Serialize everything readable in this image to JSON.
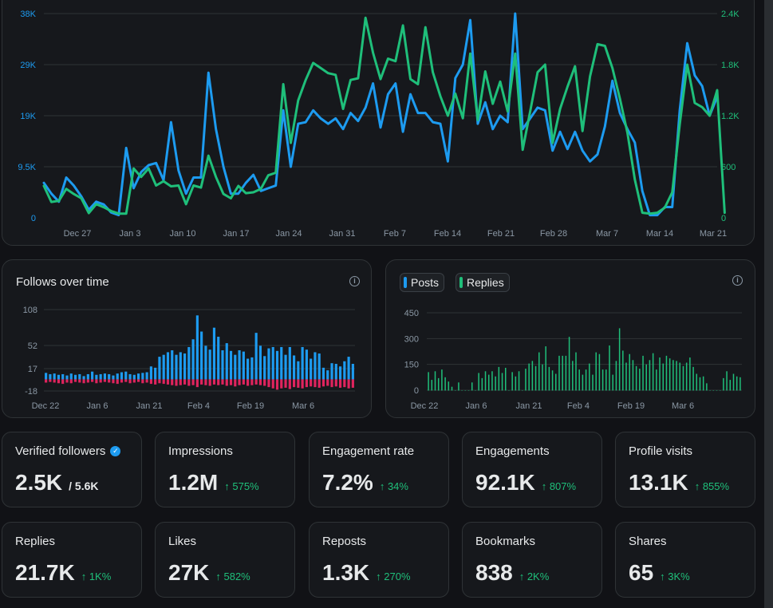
{
  "colors": {
    "blue": "#1d9bf0",
    "green": "#1fbf7a",
    "red": "#e0245e",
    "grid": "#2f3336",
    "muted": "#8b98a5"
  },
  "chart_data": [
    {
      "type": "line",
      "title": "",
      "x_tick_labels": [
        "Dec 27",
        "Jan 3",
        "Jan 10",
        "Jan 17",
        "Jan 24",
        "Jan 31",
        "Feb 7",
        "Feb 14",
        "Feb 21",
        "Feb 28",
        "Mar 7",
        "Mar 14",
        "Mar 21"
      ],
      "left_axis_ticks": [
        "0",
        "9.5K",
        "19K",
        "29K",
        "38K"
      ],
      "right_axis_ticks": [
        "0",
        "600",
        "1.2K",
        "1.8K",
        "2.4K"
      ],
      "ylim_left": [
        0,
        38000
      ],
      "ylim_right": [
        0,
        2400
      ],
      "series": [
        {
          "name": "Impressions",
          "axis": "left",
          "color": "#1d9bf0",
          "values": [
            6500,
            4500,
            3000,
            7500,
            6000,
            4000,
            1500,
            3000,
            2500,
            1000,
            500,
            13000,
            5500,
            8500,
            9800,
            10200,
            7000,
            17800,
            8800,
            4500,
            7500,
            7500,
            27000,
            16500,
            9500,
            4500,
            4500,
            6500,
            8000,
            5000,
            5500,
            6000,
            20000,
            9500,
            17500,
            17800,
            20000,
            18500,
            17500,
            18500,
            16500,
            19500,
            18000,
            20500,
            25000,
            16800,
            23000,
            25000,
            16000,
            23000,
            19500,
            19500,
            17800,
            17500,
            10500,
            26000,
            28500,
            36800,
            17500,
            21500,
            16500,
            19000,
            17800,
            38000,
            16500,
            18500,
            20500,
            20000,
            12500,
            16000,
            12800,
            16000,
            12500,
            10500,
            11800,
            17000,
            25500,
            19500,
            16500,
            14000,
            5000,
            500,
            500,
            2000,
            2000,
            20000,
            32500,
            26500,
            24500,
            19000,
            22500
          ]
        },
        {
          "name": "Engagements",
          "axis": "right",
          "color": "#1fbf7a",
          "values": [
            375,
            187,
            200,
            340,
            280,
            230,
            55,
            160,
            125,
            80,
            50,
            50,
            580,
            480,
            580,
            380,
            430,
            370,
            380,
            160,
            380,
            355,
            730,
            480,
            280,
            230,
            375,
            290,
            300,
            340,
            500,
            530,
            1570,
            880,
            1380,
            1620,
            1820,
            1760,
            1700,
            1680,
            1280,
            1620,
            1640,
            2350,
            1940,
            1630,
            1870,
            1840,
            2260,
            1630,
            1570,
            2240,
            1710,
            1430,
            1200,
            1460,
            1170,
            1930,
            1150,
            1720,
            1340,
            1600,
            1250,
            1930,
            800,
            1250,
            1710,
            1800,
            880,
            1280,
            1540,
            1780,
            1020,
            1660,
            2040,
            2020,
            1760,
            1400,
            1000,
            450,
            60,
            50,
            60,
            120,
            300,
            1100,
            1800,
            1350,
            1300,
            1200,
            1500,
            60
          ]
        }
      ]
    },
    {
      "type": "bar",
      "title": "Follows over time",
      "x_tick_labels": [
        "Dec 22",
        "Jan 6",
        "Jan 21",
        "Feb 4",
        "Feb 19",
        "Mar 6"
      ],
      "y_tick_labels": [
        "108",
        "52",
        "17",
        "-18"
      ],
      "ylim": [
        -18,
        108
      ],
      "series": [
        {
          "name": "Follows",
          "color": "#1d9bf0",
          "values": [
            10,
            8,
            9,
            7,
            8,
            6,
            9,
            7,
            8,
            5,
            8,
            12,
            7,
            8,
            9,
            8,
            6,
            9,
            11,
            12,
            8,
            7,
            9,
            10,
            11,
            20,
            18,
            35,
            38,
            42,
            45,
            38,
            42,
            40,
            50,
            62,
            99,
            74,
            52,
            46,
            80,
            66,
            45,
            56,
            44,
            38,
            45,
            43,
            32,
            34,
            72,
            52,
            36,
            48,
            50,
            44,
            50,
            38,
            50,
            37,
            28,
            50,
            46,
            32,
            42,
            40,
            18,
            14,
            25,
            24,
            20,
            28,
            35,
            24
          ]
        },
        {
          "name": "Unfollows",
          "color": "#e0245e",
          "values": [
            -5,
            -4,
            -5,
            -6,
            -7,
            -5,
            -6,
            -4,
            -5,
            -6,
            -5,
            -4,
            -6,
            -5,
            -4,
            -5,
            -6,
            -7,
            -5,
            -4,
            -6,
            -5,
            -4,
            -6,
            -5,
            -7,
            -8,
            -6,
            -7,
            -8,
            -9,
            -10,
            -9,
            -8,
            -10,
            -9,
            -12,
            -8,
            -9,
            -10,
            -8,
            -9,
            -8,
            -10,
            -9,
            -11,
            -9,
            -8,
            -10,
            -9,
            -8,
            -9,
            -10,
            -12,
            -14,
            -16,
            -14,
            -13,
            -15,
            -12,
            -13,
            -14,
            -12,
            -11,
            -12,
            -13,
            -11,
            -10,
            -12,
            -11,
            -13,
            -12,
            -14,
            -13
          ]
        }
      ]
    },
    {
      "type": "bar",
      "title": "",
      "x_tick_labels": [
        "Dec 22",
        "Jan 6",
        "Jan 21",
        "Feb 4",
        "Feb 19",
        "Mar 6"
      ],
      "y_tick_labels": [
        "450",
        "300",
        "150",
        "0"
      ],
      "ylim": [
        0,
        450
      ],
      "legend": [
        "Posts",
        "Replies"
      ],
      "series": [
        {
          "name": "Replies",
          "color": "#1fbf7a",
          "values": [
            105,
            60,
            110,
            70,
            120,
            75,
            50,
            20,
            0,
            45,
            0,
            0,
            0,
            45,
            0,
            100,
            70,
            110,
            90,
            110,
            80,
            135,
            100,
            130,
            0,
            105,
            80,
            110,
            0,
            125,
            155,
            170,
            140,
            220,
            150,
            255,
            135,
            115,
            95,
            200,
            200,
            200,
            310,
            170,
            220,
            120,
            90,
            120,
            155,
            90,
            220,
            210,
            120,
            120,
            260,
            90,
            170,
            360,
            230,
            160,
            210,
            175,
            140,
            125,
            200,
            150,
            175,
            215,
            120,
            190,
            155,
            200,
            185,
            175,
            170,
            160,
            140,
            160,
            190,
            135,
            95,
            75,
            80,
            40,
            0,
            0,
            0,
            0,
            70,
            110,
            60,
            95,
            80,
            75
          ]
        }
      ]
    }
  ],
  "legend": {
    "posts": "Posts",
    "replies": "Replies"
  },
  "follows_panel": {
    "title": "Follows over time"
  },
  "cards": [
    {
      "label": "Verified followers",
      "value": "2.5K",
      "sub": "/ 5.6K"
    },
    {
      "label": "Impressions",
      "value": "1.2M",
      "change": "↑ 575%"
    },
    {
      "label": "Engagement rate",
      "value": "7.2%",
      "change": "↑ 34%"
    },
    {
      "label": "Engagements",
      "value": "92.1K",
      "change": "↑ 807%"
    },
    {
      "label": "Profile visits",
      "value": "13.1K",
      "change": "↑ 855%"
    },
    {
      "label": "Replies",
      "value": "21.7K",
      "change": "↑ 1K%"
    },
    {
      "label": "Likes",
      "value": "27K",
      "change": "↑ 582%"
    },
    {
      "label": "Reposts",
      "value": "1.3K",
      "change": "↑ 270%"
    },
    {
      "label": "Bookmarks",
      "value": "838",
      "change": "↑ 2K%"
    },
    {
      "label": "Shares",
      "value": "65",
      "change": "↑ 3K%"
    }
  ]
}
